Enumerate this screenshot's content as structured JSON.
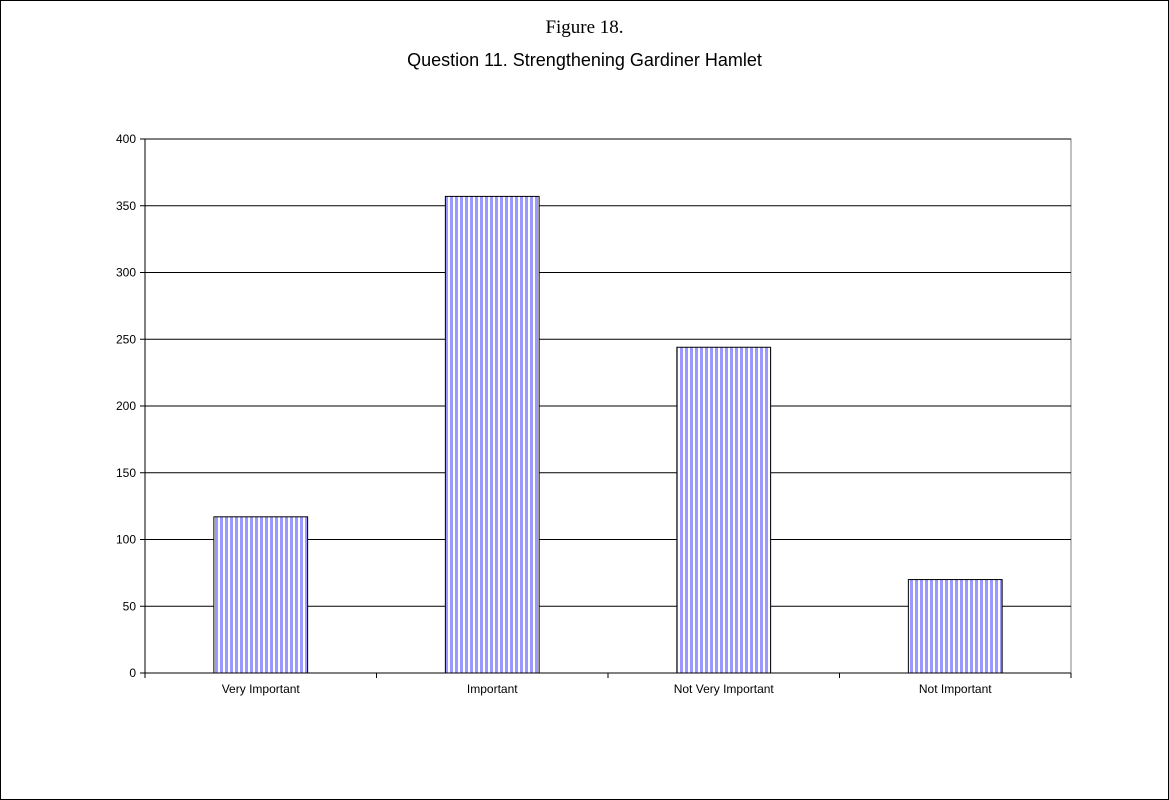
{
  "figure_label": "Figure 18.",
  "chart_data": {
    "type": "bar",
    "title": "Question 11.  Strengthening Gardiner Hamlet",
    "categories": [
      "Very Important",
      "Important",
      "Not Very Important",
      "Not Important"
    ],
    "values": [
      117,
      357,
      244,
      70
    ],
    "xlabel": "",
    "ylabel": "",
    "ylim": [
      0,
      400
    ],
    "yticks": [
      0,
      50,
      100,
      150,
      200,
      250,
      300,
      350,
      400
    ],
    "grid": true,
    "legend": "none",
    "bar_fill": "#9999ff",
    "bar_stripe": "#ffffff"
  }
}
